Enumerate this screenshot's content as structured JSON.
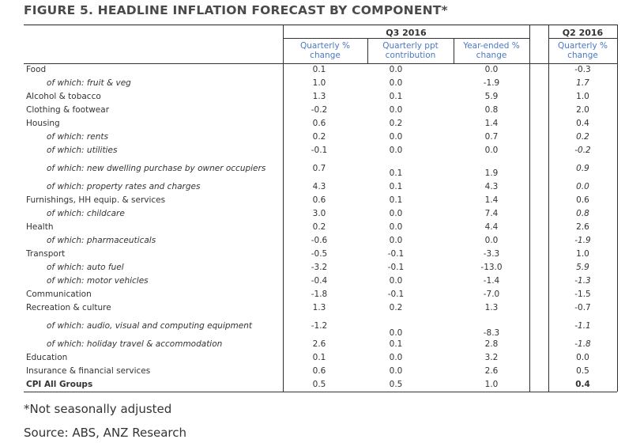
{
  "title": "FIGURE 5. HEADLINE INFLATION FORECAST BY COMPONENT*",
  "groups": {
    "q3": "Q3 2016",
    "q2": "Q2 2016"
  },
  "columns": [
    "Quarterly %\nchange",
    "Quarterly ppt\ncontribution",
    "Year-ended %\nchange",
    "Quarterly %\nchange"
  ],
  "rows": [
    {
      "label": "Food",
      "sub": false,
      "values": [
        "0.1",
        "0.0",
        "0.0",
        "-0.3"
      ]
    },
    {
      "label": "of which: fruit & veg",
      "sub": true,
      "values": [
        "1.0",
        "0.0",
        "-1.9",
        "1.7"
      ]
    },
    {
      "label": "Alcohol & tobacco",
      "sub": false,
      "values": [
        "1.3",
        "0.1",
        "5.9",
        "1.0"
      ]
    },
    {
      "label": "Clothing & footwear",
      "sub": false,
      "values": [
        "-0.2",
        "0.0",
        "0.8",
        "2.0"
      ]
    },
    {
      "label": "Housing",
      "sub": false,
      "values": [
        "0.6",
        "0.2",
        "1.4",
        "0.4"
      ]
    },
    {
      "label": "of which: rents",
      "sub": true,
      "values": [
        "0.2",
        "0.0",
        "0.7",
        "0.2"
      ]
    },
    {
      "label": "of which: utilities",
      "sub": true,
      "values": [
        "-0.1",
        "0.0",
        "0.0",
        "-0.2"
      ]
    },
    {
      "label": "of which: new dwelling purchase by owner occupiers",
      "sub": true,
      "values": [
        "0.7",
        "0.1",
        "1.9",
        "0.9"
      ]
    },
    {
      "label": "of which: property rates and charges",
      "sub": true,
      "values": [
        "4.3",
        "0.1",
        "4.3",
        "0.0"
      ]
    },
    {
      "label": "Furnishings, HH equip. & services",
      "sub": false,
      "values": [
        "0.6",
        "0.1",
        "1.4",
        "0.6"
      ]
    },
    {
      "label": "of which: childcare",
      "sub": true,
      "values": [
        "3.0",
        "0.0",
        "7.4",
        "0.8"
      ]
    },
    {
      "label": "Health",
      "sub": false,
      "values": [
        "0.2",
        "0.0",
        "4.4",
        "2.6"
      ]
    },
    {
      "label": "of which: pharmaceuticals",
      "sub": true,
      "values": [
        "-0.6",
        "0.0",
        "0.0",
        "-1.9"
      ]
    },
    {
      "label": "Transport",
      "sub": false,
      "values": [
        "-0.5",
        "-0.1",
        "-3.3",
        "1.0"
      ]
    },
    {
      "label": "of which: auto fuel",
      "sub": true,
      "values": [
        "-3.2",
        "-0.1",
        "-13.0",
        "5.9"
      ]
    },
    {
      "label": "of which: motor vehicles",
      "sub": true,
      "values": [
        "-0.4",
        "0.0",
        "-1.4",
        "-1.3"
      ]
    },
    {
      "label": "Communication",
      "sub": false,
      "values": [
        "-1.8",
        "-0.1",
        "-7.0",
        "-1.5"
      ]
    },
    {
      "label": "Recreation & culture",
      "sub": false,
      "values": [
        "1.3",
        "0.2",
        "1.3",
        "-0.7"
      ]
    },
    {
      "label": "of which: audio, visual and computing equipment",
      "sub": true,
      "values": [
        "-1.2",
        "0.0",
        "-8.3",
        "-1.1"
      ]
    },
    {
      "label": "of which: holiday travel & accommodation",
      "sub": true,
      "values": [
        "2.6",
        "0.1",
        "2.8",
        "-1.8"
      ]
    },
    {
      "label": "Education",
      "sub": false,
      "values": [
        "0.1",
        "0.0",
        "3.2",
        "0.0"
      ]
    },
    {
      "label": "Insurance & financial services",
      "sub": false,
      "values": [
        "0.6",
        "0.0",
        "2.6",
        "0.5"
      ]
    },
    {
      "label": "CPI All Groups",
      "sub": false,
      "bold": true,
      "values": [
        "0.5",
        "0.5",
        "1.0",
        "0.4"
      ]
    }
  ],
  "footnote": "*Not seasonally adjusted",
  "source": "Source: ABS, ANZ Research"
}
